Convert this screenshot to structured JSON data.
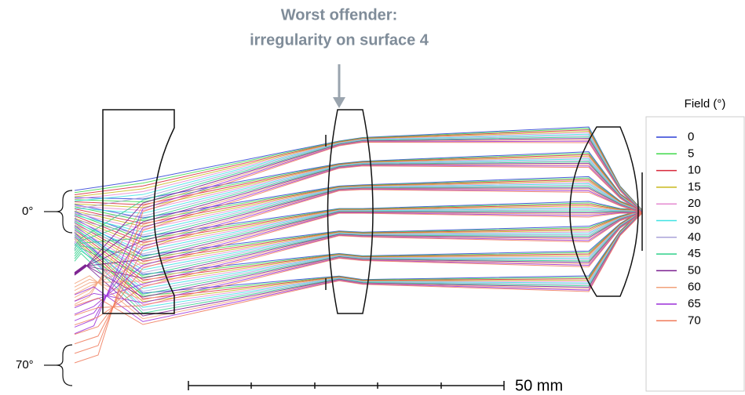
{
  "annotation": {
    "lines": [
      "Worst offender:",
      "irregularity on surface 4"
    ]
  },
  "field_labels": {
    "low": "0°",
    "high": "70°"
  },
  "scale_bar": {
    "label": "50 mm"
  },
  "legend": {
    "title": "Field (°)",
    "items": [
      {
        "label": "0",
        "color": "#2b3fd6"
      },
      {
        "label": "5",
        "color": "#3fd84a"
      },
      {
        "label": "10",
        "color": "#d8283a"
      },
      {
        "label": "15",
        "color": "#c8b81a"
      },
      {
        "label": "20",
        "color": "#e58ad0"
      },
      {
        "label": "30",
        "color": "#3fe3e3"
      },
      {
        "label": "40",
        "color": "#a9a2d8"
      },
      {
        "label": "45",
        "color": "#2fd08a"
      },
      {
        "label": "50",
        "color": "#7a1f8f"
      },
      {
        "label": "60",
        "color": "#f2a27a"
      },
      {
        "label": "65",
        "color": "#9b2fd8"
      },
      {
        "label": "70",
        "color": "#f07a5a"
      }
    ]
  }
}
